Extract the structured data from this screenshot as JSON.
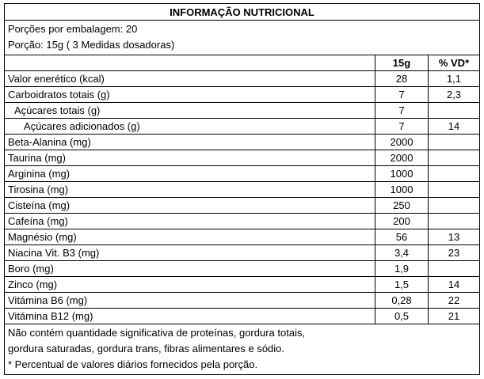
{
  "header": {
    "title": "INFORMAÇÃO NUTRICIONAL"
  },
  "serving": [
    "Porções por embalagem: 20",
    "Porção: 15g ( 3 Medidas dosadoras)"
  ],
  "columns": [
    "15g",
    "% VD*"
  ],
  "rows": [
    [
      "Valor enerético (kcal)",
      "28",
      "1,1"
    ],
    [
      "Carboidratos totais (g)",
      "7",
      "2,3"
    ],
    [
      "Açúcares totais (g)",
      "7"
    ],
    [
      "Açúcares adicionados (g)",
      "7",
      "14"
    ],
    [
      "Beta-Alanina (mg)",
      "2000"
    ],
    [
      "Taurina (mg)",
      "2000"
    ],
    [
      "Arginina (mg)",
      "1000"
    ],
    [
      "Tirosina (mg)",
      "1000"
    ],
    [
      "Cisteína (mg)",
      "250"
    ],
    [
      "Cafeína (mg)",
      "200"
    ],
    [
      "Magnésio (mg)",
      "56",
      "13"
    ],
    [
      "Niacina Vit. B3 (mg)",
      "3,4",
      "23"
    ],
    [
      "Boro (mg)",
      "1,9"
    ],
    [
      "Zinco (mg)",
      "1,5",
      "14"
    ],
    [
      "Vitámina B6 (mg)",
      "0,28",
      "22"
    ],
    [
      "Vitámina B12 (mg)",
      "0,5",
      "21"
    ]
  ],
  "footer": [
    "Não contém quantidade significativa de proteínas, gordura totais,",
    "gordura saturadas, gordura trans, fibras alimentares e sódio.",
    "* Percentual de valores diários fornecidos pela porção."
  ]
}
